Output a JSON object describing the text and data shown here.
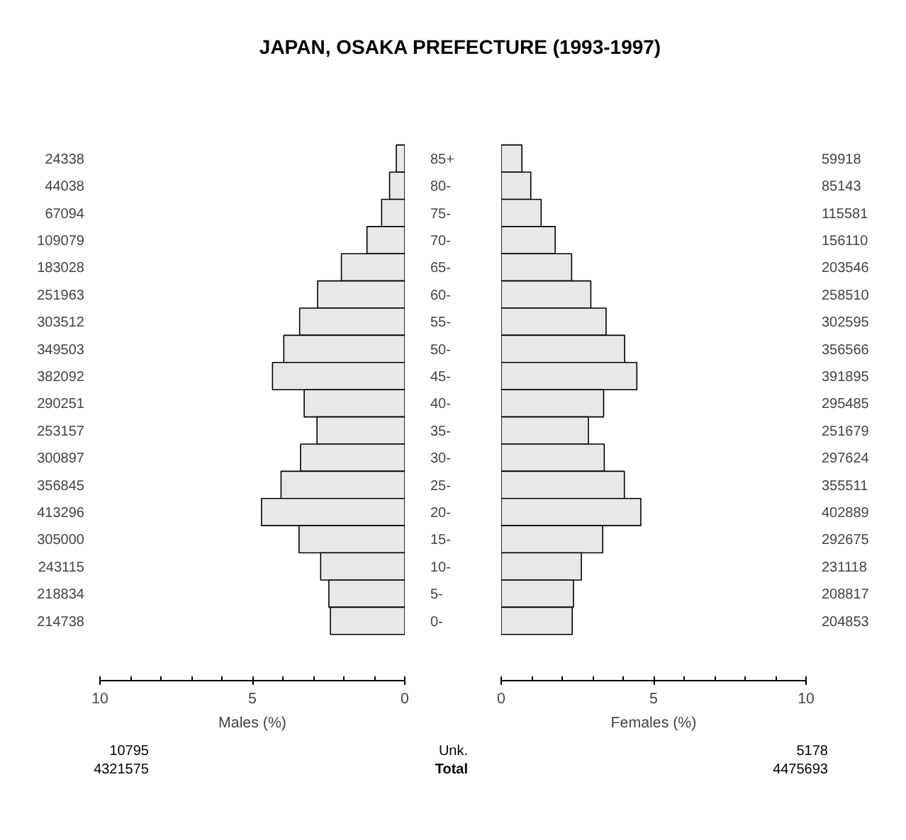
{
  "chart_data": [
    {
      "type": "bar",
      "orientation": "horizontal",
      "title": "JAPAN, OSAKA PREFECTURE (1993-1997)",
      "xlabel": "Males (%)",
      "categories": [
        "85+",
        "80-",
        "75-",
        "70-",
        "65-",
        "60-",
        "55-",
        "50-",
        "45-",
        "40-",
        "35-",
        "30-",
        "25-",
        "20-",
        "15-",
        "10-",
        "5-",
        "0-"
      ],
      "values": [
        0.28,
        0.5,
        0.76,
        1.24,
        2.08,
        2.86,
        3.45,
        3.97,
        4.34,
        3.3,
        2.88,
        3.42,
        4.06,
        4.7,
        3.47,
        2.76,
        2.49,
        2.44
      ],
      "color": "#e8e8e8",
      "xlim": [
        10,
        0
      ],
      "xticks": [
        10,
        5,
        0
      ],
      "annotations": [
        "24338",
        "44038",
        "67094",
        "109079",
        "183028",
        "251963",
        "303512",
        "349503",
        "382092",
        "290251",
        "253157",
        "300897",
        "356845",
        "413296",
        "305000",
        "243115",
        "218834",
        "214738",
        "10795",
        "Unk.",
        "4321575",
        "Total"
      ]
    },
    {
      "type": "bar",
      "orientation": "horizontal",
      "xlabel": "Females (%)",
      "categories": [
        null,
        null,
        null,
        null,
        null,
        null,
        null,
        null,
        null,
        null,
        null,
        null,
        null,
        null,
        null,
        null,
        null,
        null
      ],
      "values": [
        0.68,
        0.97,
        1.31,
        1.77,
        2.31,
        2.94,
        3.44,
        4.05,
        4.45,
        3.36,
        2.86,
        3.38,
        4.04,
        4.58,
        3.33,
        2.63,
        2.37,
        2.33
      ],
      "color": "#e8e8e8",
      "xlim": [
        0,
        10
      ],
      "xticks": [
        0,
        5,
        10
      ],
      "annotations": [
        "59918",
        "85143",
        "115581",
        "156110",
        "203546",
        "258510",
        "302595",
        "356566",
        "391895",
        "295485",
        "251679",
        "297624",
        "355511",
        "402889",
        "292675",
        "231118",
        "208817",
        "204853",
        "5178",
        "4475693"
      ]
    }
  ]
}
